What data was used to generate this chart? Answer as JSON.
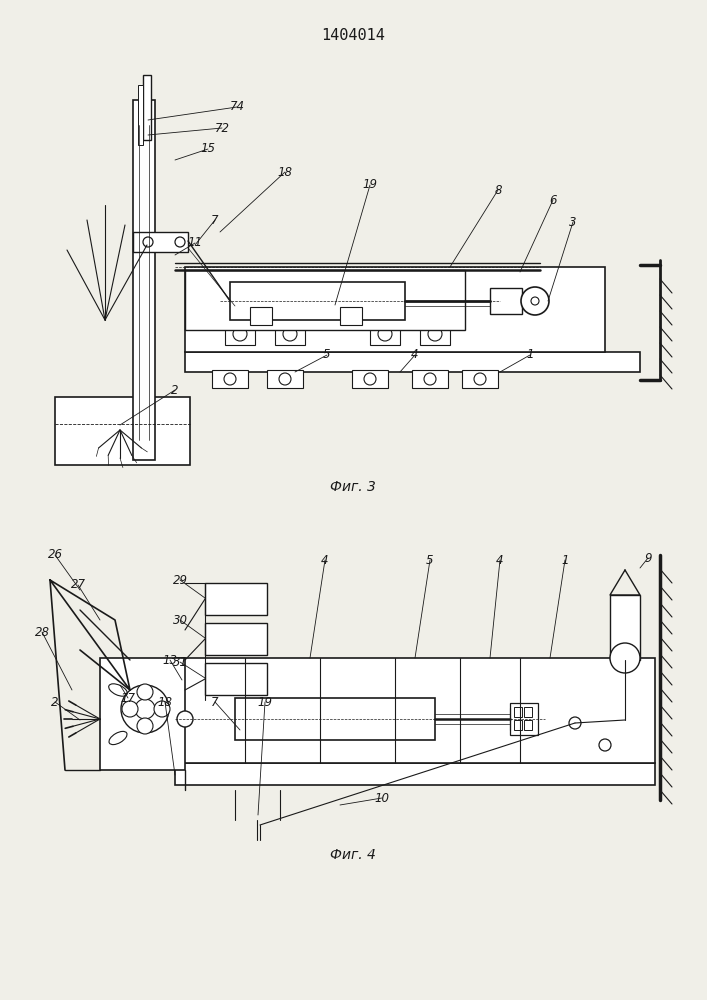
{
  "patent_number": "1404014",
  "fig3_caption": "Фиг. 3",
  "fig4_caption": "Фиг. 4",
  "bg_color": "#f0efe8",
  "line_color": "#1a1a1a"
}
